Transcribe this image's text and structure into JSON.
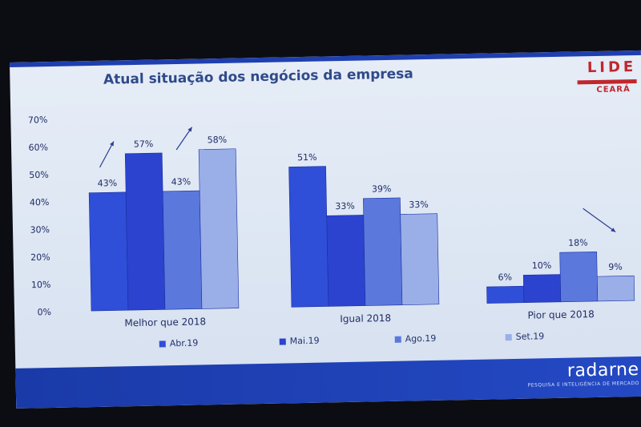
{
  "slide": {
    "title": "Atual situação dos negócios da empresa",
    "logo_main": "LIDE",
    "logo_sub": "CEARÁ",
    "brand": "radarne",
    "brand_sub": "PESQUISA E INTELIGÊNCIA DE MERCADO"
  },
  "colors": {
    "Abr.19": "#2f4fd8",
    "Mai.19": "#2b43cf",
    "Ago.19": "#5b78dc",
    "Set.19": "#9aaee8"
  },
  "chart_data": {
    "type": "bar",
    "title": "Atual situação dos negócios da empresa",
    "categories": [
      "Melhor que 2018",
      "Igual 2018",
      "Pior que 2018"
    ],
    "series": [
      {
        "name": "Abr.19",
        "values": [
          43,
          51,
          6
        ],
        "labels": [
          "43%",
          "51%",
          "6%"
        ]
      },
      {
        "name": "Mai.19",
        "values": [
          57,
          33,
          10
        ],
        "labels": [
          "57%",
          "33%",
          "10%"
        ]
      },
      {
        "name": "Ago.19",
        "values": [
          43,
          39,
          18
        ],
        "labels": [
          "43%",
          "39%",
          "18%"
        ]
      },
      {
        "name": "Set.19",
        "values": [
          58,
          33,
          9
        ],
        "labels": [
          "58%",
          "33%",
          "9%"
        ]
      }
    ],
    "yticks": [
      "0%",
      "10%",
      "20%",
      "30%",
      "40%",
      "50%",
      "60%",
      "70%"
    ],
    "ylim": [
      0,
      70
    ],
    "grid": false,
    "legend_position": "bottom"
  }
}
